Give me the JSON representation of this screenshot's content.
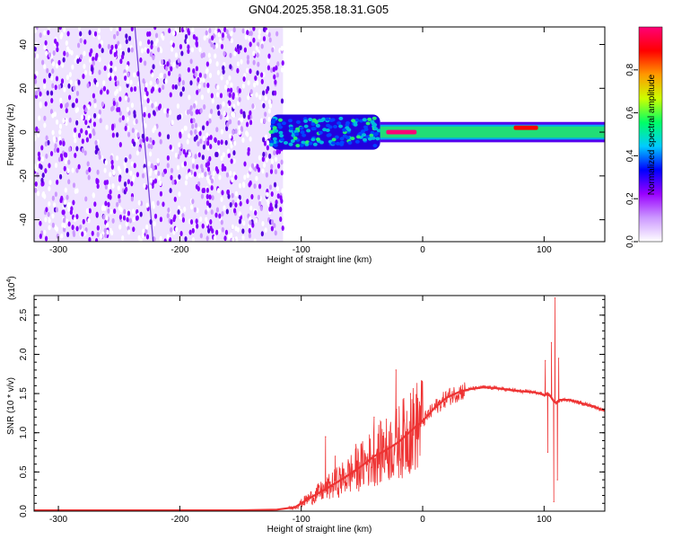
{
  "title": "GN04.2025.358.18.31.G05",
  "chart_data": [
    {
      "type": "heatmap",
      "xlabel": "Height of straight line (km)",
      "ylabel": "Frequency (Hz)",
      "xlim": [
        -320,
        150
      ],
      "ylim": [
        -50,
        48
      ],
      "xticks": [
        -300,
        -200,
        -100,
        0,
        100
      ],
      "yticks": [
        -40,
        -20,
        0,
        20,
        40
      ],
      "colorbar": {
        "label": "Normalized spectral amplitude",
        "range": [
          0,
          1
        ],
        "ticks": [
          "0.0",
          "0.2",
          "0.4",
          "0.6",
          "0.8"
        ],
        "colors": [
          "#ffffff",
          "#cc99ff",
          "#9900ff",
          "#0000ff",
          "#00ccff",
          "#00ff66",
          "#ccff00",
          "#ff9900",
          "#ff0000",
          "#ff0077"
        ]
      },
      "regions": [
        {
          "x": [
            -320,
            -115
          ],
          "freq_range": [
            -50,
            48
          ],
          "amplitude": 0.15
        },
        {
          "x": [
            -125,
            -35
          ],
          "freq_range": [
            -8,
            8
          ],
          "amplitude": 0.3
        },
        {
          "x": [
            -35,
            150
          ],
          "freq_range": [
            -3,
            3
          ],
          "amplitude": 0.45
        },
        {
          "x": [
            -30,
            -5
          ],
          "freq_range": [
            -1,
            1
          ],
          "amplitude": 0.95
        },
        {
          "x": [
            75,
            95
          ],
          "freq_range": [
            1,
            3
          ],
          "amplitude": 0.9
        }
      ]
    },
    {
      "type": "line",
      "xlabel": "Height of straight line (km)",
      "ylabel": "SNR (10 * v/v)",
      "ylabel_scale": "(x10",
      "ylabel_scale_exp": "4",
      "ylabel_scale_close": ")",
      "xlim": [
        -320,
        150
      ],
      "ylim": [
        0,
        2.75
      ],
      "xticks": [
        -300,
        -200,
        -100,
        0,
        100
      ],
      "yticks": [
        "0.0",
        "0.5",
        "1.0",
        "1.5",
        "2.0",
        "2.5"
      ],
      "color": "#ee3333",
      "x": [
        -320,
        -250,
        -150,
        -120,
        -105,
        -95,
        -80,
        -65,
        -50,
        -40,
        -30,
        -20,
        -10,
        0,
        10,
        20,
        30,
        40,
        50,
        60,
        70,
        80,
        90,
        97,
        100,
        103,
        106,
        108,
        110,
        113,
        120,
        130,
        140,
        150
      ],
      "values": [
        0.01,
        0.01,
        0.01,
        0.02,
        0.05,
        0.15,
        0.28,
        0.42,
        0.58,
        0.7,
        0.78,
        0.88,
        1.02,
        1.15,
        1.32,
        1.45,
        1.52,
        1.56,
        1.58,
        1.57,
        1.55,
        1.53,
        1.52,
        1.5,
        1.48,
        1.5,
        1.45,
        1.4,
        1.38,
        1.42,
        1.42,
        1.38,
        1.34,
        1.28
      ],
      "spikes": [
        {
          "x": -80,
          "value": 0.95
        },
        {
          "x": -72,
          "value": 0.7
        },
        {
          "x": -55,
          "value": 0.85
        },
        {
          "x": -40,
          "value": 1.2
        },
        {
          "x": -32,
          "value": 1.0
        },
        {
          "x": -22,
          "value": 1.8
        },
        {
          "x": -10,
          "value": 1.5
        },
        {
          "x": 101,
          "value": 1.92
        },
        {
          "x": 103,
          "value": 0.75
        },
        {
          "x": 106,
          "value": 2.15
        },
        {
          "x": 108,
          "value": 0.12
        },
        {
          "x": 109,
          "value": 2.72
        },
        {
          "x": 111,
          "value": 0.4
        },
        {
          "x": 112,
          "value": 1.95
        }
      ]
    }
  ]
}
